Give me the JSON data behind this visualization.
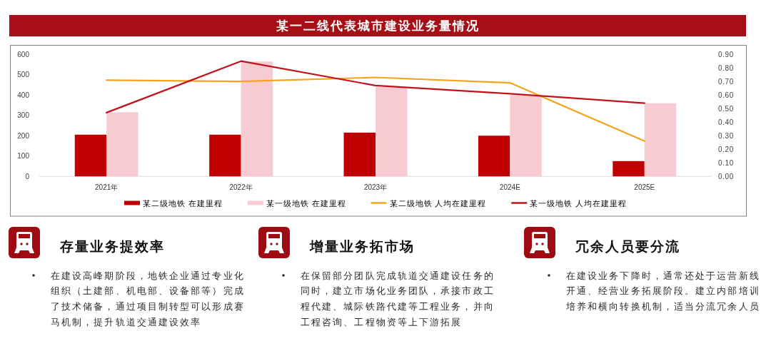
{
  "chart_data": [
    {
      "type": "bar",
      "title": "某一二线代表城市建设业务量情况",
      "categories": [
        "2021年",
        "2022年",
        "2023年",
        "2024E",
        "2025E"
      ],
      "series": [
        {
          "name": "某二级地铁 在建里程",
          "color": "#c00000",
          "values": [
            205,
            205,
            215,
            200,
            75
          ]
        },
        {
          "name": "某一级地铁 在建里程",
          "color": "#f7cbd1",
          "values": [
            315,
            565,
            440,
            400,
            360
          ]
        },
        {
          "name": "某二级地铁 人均在建里程",
          "type": "line",
          "axis": "y2",
          "color": "#f5a31a",
          "values": [
            0.71,
            0.7,
            0.73,
            0.69,
            0.26
          ]
        },
        {
          "name": "某一级地铁 人均在建里程",
          "type": "line",
          "axis": "y2",
          "color": "#c0121b",
          "values": [
            0.47,
            0.85,
            0.67,
            0.61,
            0.54
          ]
        }
      ],
      "ylim": [
        0,
        600
      ],
      "yticks": [
        0,
        100,
        200,
        300,
        400,
        500,
        600
      ],
      "y2lim": [
        0,
        0.9
      ],
      "y2ticks": [
        {
          "value": 0,
          "label": "0.00"
        },
        {
          "value": 0.1,
          "label": "0.10"
        },
        {
          "value": 0.2,
          "label": "0.20"
        },
        {
          "value": 0.3,
          "label": "0.30"
        },
        {
          "value": 0.4,
          "label": "0.40"
        },
        {
          "value": 0.5,
          "label": "0.50"
        },
        {
          "value": 0.6,
          "label": "0.60"
        },
        {
          "value": 0.7,
          "label": "0.70"
        },
        {
          "value": 0.8,
          "label": "0.80"
        },
        {
          "value": 0.9,
          "label": "0.90"
        }
      ],
      "legend": "bottom"
    },
    {
      "type": "other",
      "title": "存量业务提效率",
      "annotations": [
        "在建设高峰期阶段，地铁企业通过专业化组织（土建部、机电部、设备部等）完成了技术储备，通过项目制转型可以形成赛马机制，提升轨道交通建设效率"
      ]
    },
    {
      "type": "other",
      "title": "增量业务拓市场",
      "annotations": [
        "在保留部分团队完成轨道交通建设任务的同时，建立市场化业务团队，承接市政工程代建、城际铁路代建等工程业务，并向工程咨询、工程物资等上下游拓展"
      ]
    },
    {
      "type": "other",
      "title": "冗余人员要分流",
      "annotations": [
        "在建设业务下降时，通常还处于运营新线开通、经营业务拓展阶段。建立内部培训培养和横向转换机制，适当分流冗余人员"
      ]
    }
  ]
}
